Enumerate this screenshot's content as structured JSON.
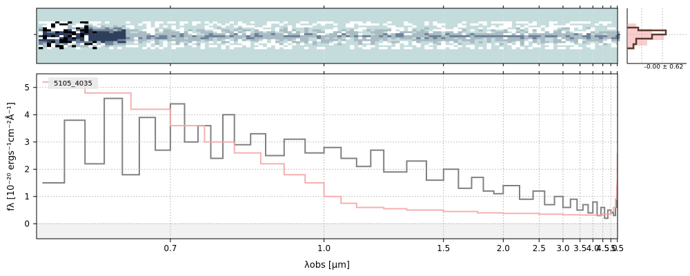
{
  "chart_data": {
    "type": "line",
    "object_label": "5105_4035",
    "xlabel": "λobs [μm]",
    "ylabel": "fλ [10⁻²⁰ ergs⁻¹cm⁻²Å⁻¹]",
    "x_scale": "reciprocal",
    "xlim": [
      0.555,
      5.52
    ],
    "ylim": [
      -0.55,
      5.5
    ],
    "x_ticks": [
      0.7,
      1.0,
      1.5,
      2.0,
      2.5,
      3.0,
      3.5,
      4.0,
      4.5,
      5.0,
      5.5
    ],
    "x_tick_labels": [
      "0.7",
      "1.0",
      "1.5",
      "2.0",
      "2.5",
      "3.0",
      "3.5",
      "4.0",
      "4.5",
      "5.0",
      "5.5"
    ],
    "y_ticks": [
      0,
      1,
      2,
      3,
      4,
      5
    ],
    "y_tick_labels": [
      "0",
      "1",
      "2",
      "3",
      "4",
      "5"
    ],
    "grid": true,
    "series": [
      {
        "role": "data",
        "color": "#808080",
        "x": [
          0.56,
          0.58,
          0.6,
          0.62,
          0.64,
          0.66,
          0.68,
          0.7,
          0.72,
          0.74,
          0.76,
          0.78,
          0.8,
          0.83,
          0.86,
          0.9,
          0.95,
          1.0,
          1.05,
          1.1,
          1.15,
          1.2,
          1.3,
          1.4,
          1.5,
          1.6,
          1.7,
          1.8,
          1.9,
          2.0,
          2.2,
          2.4,
          2.6,
          2.8,
          3.0,
          3.2,
          3.4,
          3.6,
          3.8,
          4.0,
          4.2,
          4.4,
          4.6,
          4.8,
          5.0,
          5.2,
          5.35,
          5.45,
          5.5
        ],
        "y": [
          1.5,
          3.8,
          2.2,
          4.6,
          1.8,
          3.9,
          2.7,
          4.4,
          3.0,
          3.6,
          2.4,
          4.0,
          2.9,
          3.3,
          2.5,
          3.1,
          2.6,
          2.8,
          2.4,
          2.1,
          2.7,
          1.9,
          2.3,
          1.6,
          2.0,
          1.3,
          1.7,
          1.2,
          1.1,
          1.4,
          0.9,
          1.2,
          0.7,
          1.0,
          0.6,
          0.9,
          0.5,
          0.7,
          0.4,
          0.8,
          0.3,
          0.6,
          0.2,
          0.5,
          0.4,
          0.3,
          0.6,
          1.0,
          1.6
        ]
      },
      {
        "role": "model",
        "color": "#f4a6a6",
        "x": [
          0.56,
          0.6,
          0.65,
          0.7,
          0.75,
          0.8,
          0.85,
          0.9,
          0.95,
          1.0,
          1.05,
          1.1,
          1.2,
          1.3,
          1.5,
          1.75,
          2.0,
          2.5,
          3.0,
          3.5,
          4.0,
          4.5,
          5.0,
          5.2,
          5.35,
          5.45,
          5.5
        ],
        "y": [
          5.2,
          4.8,
          4.2,
          3.6,
          3.0,
          2.6,
          2.2,
          1.8,
          1.5,
          1.0,
          0.75,
          0.6,
          0.55,
          0.5,
          0.45,
          0.4,
          0.38,
          0.35,
          0.33,
          0.32,
          0.32,
          0.35,
          0.45,
          0.6,
          0.9,
          1.4,
          2.6
        ]
      }
    ]
  },
  "spectrum_2d": {
    "background": "#c5dcdc",
    "trace_color": "#2e3f5c",
    "y_tick_labels": [
      "",
      ""
    ]
  },
  "profile_panel": {
    "label": "-0.00 ± 0.62",
    "model_color": "#f4a6a6",
    "data_color": "#5c3a2e"
  }
}
